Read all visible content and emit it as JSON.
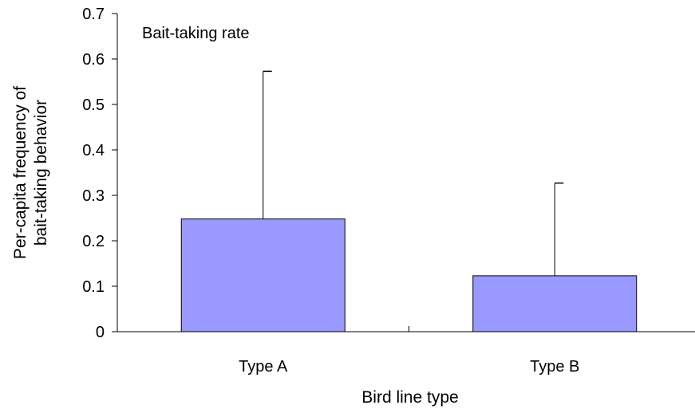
{
  "chart_data": {
    "type": "bar",
    "title": "",
    "annotation": "Bait-taking rate",
    "xlabel": "Bird line type",
    "ylabel_lines": [
      "Per-capita frequency of",
      "bait-taking behavior"
    ],
    "categories": [
      "Type A",
      "Type B"
    ],
    "series": [
      {
        "values": [
          0.248,
          0.123
        ],
        "error_upper": [
          0.325,
          0.204
        ],
        "color": "#9999ff"
      }
    ],
    "ylim": [
      0,
      0.7
    ],
    "yticks": [
      "0",
      "0.1",
      "0.2",
      "0.3",
      "0.4",
      "0.5",
      "0.6",
      "0.7"
    ],
    "grid": false
  }
}
